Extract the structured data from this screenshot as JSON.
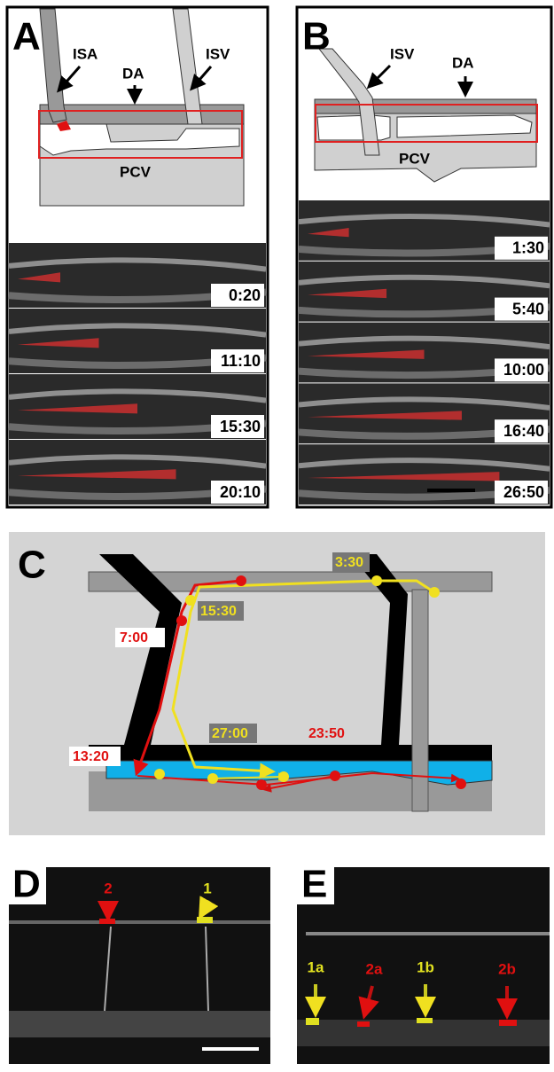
{
  "panel_a": {
    "letter": "A",
    "labels": [
      "ISA",
      "DA",
      "ISV",
      "PCV"
    ],
    "timestamps": [
      "0:20",
      "11:10",
      "15:30",
      "20:10"
    ]
  },
  "panel_b": {
    "letter": "B",
    "labels": [
      "ISV",
      "DA",
      "PCV"
    ],
    "timestamps": [
      "1:30",
      "5:40",
      "10:00",
      "16:40",
      "26:50"
    ]
  },
  "panel_c": {
    "letter": "C",
    "red_times": [
      "7:00",
      "23:50",
      "13:20"
    ],
    "yellow_times": [
      "3:30",
      "15:30",
      "27:00"
    ]
  },
  "panel_d": {
    "letter": "D",
    "cells": [
      "2",
      "1"
    ]
  },
  "panel_e": {
    "letter": "E",
    "cells": [
      "1a",
      "2a",
      "1b",
      "2b"
    ]
  }
}
